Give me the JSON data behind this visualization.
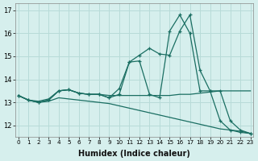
{
  "xlabel": "Humidex (Indice chaleur)",
  "background_color": "#d6efed",
  "grid_color": "#b8dbd8",
  "line_color": "#1a6e62",
  "x_values": [
    0,
    1,
    2,
    3,
    4,
    5,
    6,
    7,
    8,
    9,
    10,
    11,
    12,
    13,
    14,
    15,
    16,
    17,
    18,
    19,
    20,
    21,
    22,
    23
  ],
  "line_main": [
    13.3,
    13.1,
    13.0,
    13.1,
    13.5,
    13.55,
    13.4,
    13.35,
    13.35,
    13.2,
    13.35,
    14.75,
    14.8,
    13.35,
    13.2,
    16.1,
    16.8,
    16.0,
    13.5,
    13.5,
    12.2,
    11.8,
    11.7,
    11.65
  ],
  "line_upper": [
    13.3,
    13.1,
    13.0,
    13.1,
    13.5,
    13.55,
    13.4,
    13.35,
    13.35,
    13.2,
    13.6,
    14.75,
    15.05,
    15.35,
    15.1,
    15.05,
    16.1,
    16.8,
    14.4,
    13.5,
    13.5,
    12.2,
    11.8,
    11.65
  ],
  "line_flat": [
    13.3,
    13.1,
    13.05,
    13.15,
    13.5,
    13.55,
    13.4,
    13.35,
    13.35,
    13.3,
    13.3,
    13.3,
    13.3,
    13.3,
    13.3,
    13.3,
    13.35,
    13.35,
    13.4,
    13.45,
    13.5,
    13.5,
    13.5,
    13.5
  ],
  "line_down": [
    13.3,
    13.1,
    13.0,
    13.05,
    13.2,
    13.15,
    13.1,
    13.05,
    13.0,
    12.95,
    12.85,
    12.75,
    12.65,
    12.55,
    12.45,
    12.35,
    12.25,
    12.15,
    12.05,
    11.95,
    11.85,
    11.8,
    11.75,
    11.65
  ],
  "ylim": [
    11.5,
    17.3
  ],
  "yticks": [
    12,
    13,
    14,
    15,
    16,
    17
  ],
  "xticks": [
    0,
    1,
    2,
    3,
    4,
    5,
    6,
    7,
    8,
    9,
    10,
    11,
    12,
    13,
    14,
    15,
    16,
    17,
    18,
    19,
    20,
    21,
    22,
    23
  ]
}
